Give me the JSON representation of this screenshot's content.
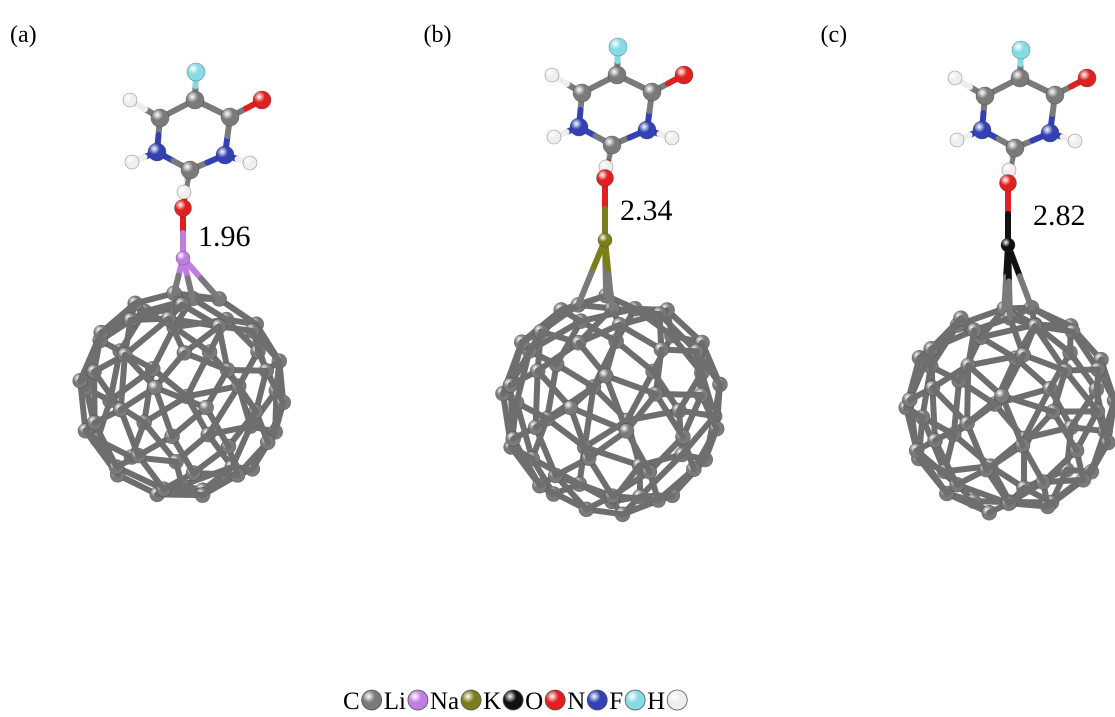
{
  "panels": [
    {
      "label": "(a)",
      "distance": "1.96"
    },
    {
      "label": "(b)",
      "distance": "2.34"
    },
    {
      "label": "(c)",
      "distance": "2.82"
    }
  ],
  "legend": [
    {
      "symbol": "C",
      "color": "#7a7a7a"
    },
    {
      "symbol": "Li",
      "color": "#c07ee0"
    },
    {
      "symbol": "Na",
      "color": "#7d7d1e"
    },
    {
      "symbol": "K",
      "color": "#111111"
    },
    {
      "symbol": "O",
      "color": "#e02020"
    },
    {
      "symbol": "N",
      "color": "#3242b4"
    },
    {
      "symbol": "F",
      "color": "#86dbe4"
    },
    {
      "symbol": "H",
      "color": "#eeeeee"
    }
  ]
}
